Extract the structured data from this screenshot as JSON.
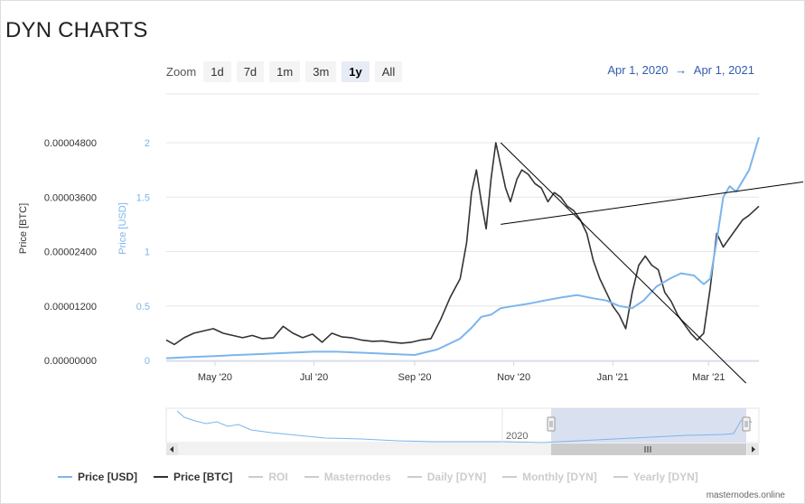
{
  "title": "DYN CHARTS",
  "zoom": {
    "label": "Zoom",
    "buttons": [
      "1d",
      "7d",
      "1m",
      "3m",
      "1y",
      "All"
    ],
    "selected": "1y"
  },
  "range": {
    "from": "Apr 1, 2020",
    "arrow": "→",
    "to": "Apr 1, 2021"
  },
  "footer": "masternodes.online",
  "colors": {
    "btc": "#333333",
    "usd": "#7cb5ec",
    "disabled": "#cccccc",
    "navigator_fill": "#ccd6eb"
  },
  "legend": [
    {
      "label": "Price [USD]",
      "color": "#7cb5ec",
      "active": true
    },
    {
      "label": "Price [BTC]",
      "color": "#333333",
      "active": true
    },
    {
      "label": "ROI",
      "color": "#cccccc",
      "active": false
    },
    {
      "label": "Masternodes",
      "color": "#cccccc",
      "active": false
    },
    {
      "label": "Daily [DYN]",
      "color": "#cccccc",
      "active": false
    },
    {
      "label": "Monthly [DYN]",
      "color": "#cccccc",
      "active": false
    },
    {
      "label": "Yearly [DYN]",
      "color": "#cccccc",
      "active": false
    }
  ],
  "navigator": {
    "year_label": "2020"
  },
  "chart_data": {
    "type": "line",
    "x_range": [
      "2020-04-01",
      "2021-04-01"
    ],
    "x_ticks": [
      "May '20",
      "Jul '20",
      "Sep '20",
      "Nov '20",
      "Jan '21",
      "Mar '21"
    ],
    "y_left": {
      "label": "Price [BTC]",
      "ticks": [
        "0.00000000",
        "0.00001200",
        "0.00002400",
        "0.00003600",
        "0.00004800"
      ],
      "range": [
        0,
        4.8e-05
      ]
    },
    "y_right": {
      "label": "Price [USD]",
      "ticks": [
        "0",
        "0.5",
        "1",
        "1.5",
        "2"
      ],
      "range": [
        0,
        2
      ]
    },
    "series": [
      {
        "name": "Price [BTC]",
        "axis": "left",
        "color": "#333333",
        "x": [
          "2020-04-01",
          "2020-04-06",
          "2020-04-12",
          "2020-04-18",
          "2020-04-24",
          "2020-04-30",
          "2020-05-06",
          "2020-05-12",
          "2020-05-18",
          "2020-05-24",
          "2020-05-30",
          "2020-06-06",
          "2020-06-12",
          "2020-06-18",
          "2020-06-24",
          "2020-06-30",
          "2020-07-06",
          "2020-07-12",
          "2020-07-18",
          "2020-07-24",
          "2020-07-30",
          "2020-08-06",
          "2020-08-12",
          "2020-08-18",
          "2020-08-24",
          "2020-08-30",
          "2020-09-05",
          "2020-09-11",
          "2020-09-17",
          "2020-09-23",
          "2020-09-29",
          "2020-10-03",
          "2020-10-06",
          "2020-10-09",
          "2020-10-12",
          "2020-10-15",
          "2020-10-18",
          "2020-10-21",
          "2020-10-24",
          "2020-10-27",
          "2020-10-30",
          "2020-11-03",
          "2020-11-06",
          "2020-11-10",
          "2020-11-14",
          "2020-11-18",
          "2020-11-22",
          "2020-11-26",
          "2020-11-30",
          "2020-12-04",
          "2020-12-08",
          "2020-12-12",
          "2020-12-16",
          "2020-12-20",
          "2020-12-24",
          "2020-12-28",
          "2021-01-01",
          "2021-01-05",
          "2021-01-09",
          "2021-01-13",
          "2021-01-17",
          "2021-01-21",
          "2021-01-25",
          "2021-01-29",
          "2021-02-02",
          "2021-02-06",
          "2021-02-10",
          "2021-02-14",
          "2021-02-18",
          "2021-02-22",
          "2021-02-26",
          "2021-03-02",
          "2021-03-06",
          "2021-03-10",
          "2021-03-14",
          "2021-03-18",
          "2021-03-22",
          "2021-03-26",
          "2021-04-01"
        ],
        "values": [
          4.5e-06,
          3.5e-06,
          5e-06,
          6e-06,
          6.5e-06,
          7e-06,
          6e-06,
          5.5e-06,
          5e-06,
          5.5e-06,
          4.8e-06,
          5e-06,
          7.5e-06,
          6e-06,
          5e-06,
          5.8e-06,
          4e-06,
          6e-06,
          5.2e-06,
          5e-06,
          4.5e-06,
          4.2e-06,
          4.3e-06,
          4e-06,
          3.8e-06,
          4e-06,
          4.5e-06,
          4.8e-06,
          9e-06,
          1.4e-05,
          1.8e-05,
          2.6e-05,
          3.7e-05,
          4.2e-05,
          3.5e-05,
          2.9e-05,
          4e-05,
          4.8e-05,
          4.3e-05,
          3.8e-05,
          3.5e-05,
          4e-05,
          4.2e-05,
          4.1e-05,
          3.9e-05,
          3.8e-05,
          3.5e-05,
          3.7e-05,
          3.6e-05,
          3.4e-05,
          3.3e-05,
          3.1e-05,
          2.8e-05,
          2.2e-05,
          1.8e-05,
          1.5e-05,
          1.2e-05,
          1e-05,
          7e-06,
          1.5e-05,
          2.1e-05,
          2.3e-05,
          2.1e-05,
          2e-05,
          1.5e-05,
          1.3e-05,
          1e-05,
          8e-06,
          6e-06,
          4.5e-06,
          6e-06,
          1.6e-05,
          2.8e-05,
          2.5e-05,
          2.7e-05,
          2.9e-05,
          3.1e-05,
          3.2e-05,
          3.4e-05
        ]
      },
      {
        "name": "Price [USD]",
        "axis": "right",
        "color": "#7cb5ec",
        "x": [
          "2020-04-01",
          "2020-04-15",
          "2020-05-01",
          "2020-05-15",
          "2020-06-01",
          "2020-06-15",
          "2020-07-01",
          "2020-07-15",
          "2020-08-01",
          "2020-08-15",
          "2020-09-01",
          "2020-09-15",
          "2020-09-29",
          "2020-10-06",
          "2020-10-12",
          "2020-10-18",
          "2020-10-24",
          "2020-11-01",
          "2020-11-10",
          "2020-11-20",
          "2020-12-01",
          "2020-12-10",
          "2020-12-20",
          "2020-12-28",
          "2021-01-05",
          "2021-01-13",
          "2021-01-20",
          "2021-01-28",
          "2021-02-05",
          "2021-02-12",
          "2021-02-20",
          "2021-02-26",
          "2021-03-02",
          "2021-03-06",
          "2021-03-10",
          "2021-03-14",
          "2021-03-18",
          "2021-03-22",
          "2021-03-26",
          "2021-04-01"
        ],
        "values": [
          0.02,
          0.03,
          0.04,
          0.05,
          0.06,
          0.07,
          0.08,
          0.08,
          0.07,
          0.06,
          0.05,
          0.1,
          0.2,
          0.3,
          0.4,
          0.42,
          0.48,
          0.5,
          0.52,
          0.55,
          0.58,
          0.6,
          0.57,
          0.55,
          0.5,
          0.48,
          0.55,
          0.68,
          0.75,
          0.8,
          0.78,
          0.7,
          0.75,
          1.1,
          1.5,
          1.6,
          1.55,
          1.65,
          1.75,
          2.05
        ]
      }
    ],
    "trend_lines": [
      {
        "from": [
          "2020-10-24",
          3e-05
        ],
        "to": [
          "2021-04-01",
          3.8e-05
        ]
      },
      {
        "from": [
          "2020-10-24",
          4.8e-05
        ],
        "to": [
          "2021-03-24",
          -5e-06
        ]
      }
    ],
    "grid": true,
    "legend_position": "bottom"
  }
}
